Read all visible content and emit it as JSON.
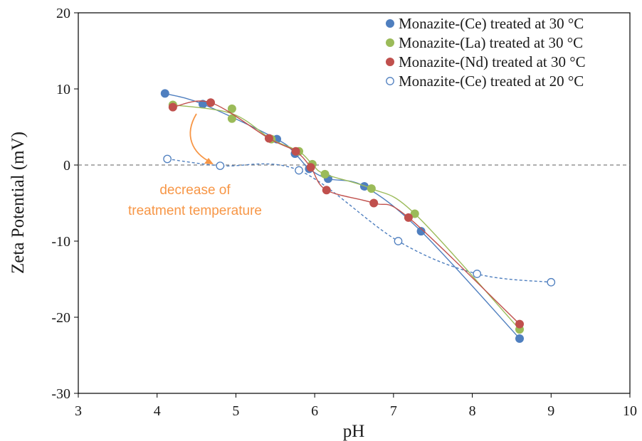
{
  "chart_data": {
    "type": "scatter",
    "xlabel": "pH",
    "ylabel": "Zeta Potential (mV)",
    "xlim": [
      3,
      10
    ],
    "ylim": [
      -30,
      20
    ],
    "xticks": [
      3,
      4,
      5,
      6,
      7,
      8,
      9,
      10
    ],
    "yticks": [
      -30,
      -20,
      -10,
      0,
      10,
      20
    ],
    "grid": false,
    "legend_position": "top-right",
    "reference_line": {
      "y": 0,
      "style": "dashed"
    },
    "series": [
      {
        "name": "Monazite-(Ce) treated at 30 °C",
        "color": "#4f7fbf",
        "marker": "filled-circle",
        "line": "solid",
        "points": [
          [
            4.1,
            9.4
          ],
          [
            4.58,
            8.0
          ],
          [
            5.52,
            3.4
          ],
          [
            5.75,
            1.5
          ],
          [
            5.93,
            -0.5
          ],
          [
            6.17,
            -1.8
          ],
          [
            6.63,
            -2.8
          ],
          [
            7.35,
            -8.7
          ],
          [
            8.6,
            -22.8
          ]
        ]
      },
      {
        "name": "Monazite-(La) treated at 30 °C",
        "color": "#9bbb59",
        "marker": "filled-circle",
        "line": "solid",
        "points": [
          [
            4.2,
            7.9
          ],
          [
            4.95,
            7.4
          ],
          [
            4.95,
            6.1
          ],
          [
            5.45,
            3.4
          ],
          [
            5.8,
            1.8
          ],
          [
            5.97,
            0.1
          ],
          [
            6.13,
            -1.2
          ],
          [
            6.72,
            -3.1
          ],
          [
            7.27,
            -6.4
          ],
          [
            8.6,
            -21.6
          ]
        ]
      },
      {
        "name": "Monazite-(Nd) treated at 30 °C",
        "color": "#c0504d",
        "marker": "filled-circle",
        "line": "solid",
        "points": [
          [
            4.2,
            7.6
          ],
          [
            4.68,
            8.2
          ],
          [
            5.42,
            3.5
          ],
          [
            5.76,
            1.8
          ],
          [
            5.95,
            -0.3
          ],
          [
            6.15,
            -3.3
          ],
          [
            6.75,
            -5.0
          ],
          [
            7.19,
            -6.9
          ],
          [
            8.6,
            -20.9
          ]
        ]
      },
      {
        "name": "Monazite-(Ce) treated at 20 °C",
        "color": "#4f7fbf",
        "marker": "open-circle",
        "line": "dashed",
        "points": [
          [
            4.13,
            0.8
          ],
          [
            4.8,
            -0.1
          ],
          [
            5.8,
            -0.7
          ],
          [
            7.06,
            -10.0
          ],
          [
            8.06,
            -14.3
          ],
          [
            9.0,
            -15.4
          ]
        ]
      }
    ],
    "annotation": {
      "text_lines": [
        "decrease of",
        "treatment temperature"
      ],
      "color": "#f79646"
    }
  }
}
